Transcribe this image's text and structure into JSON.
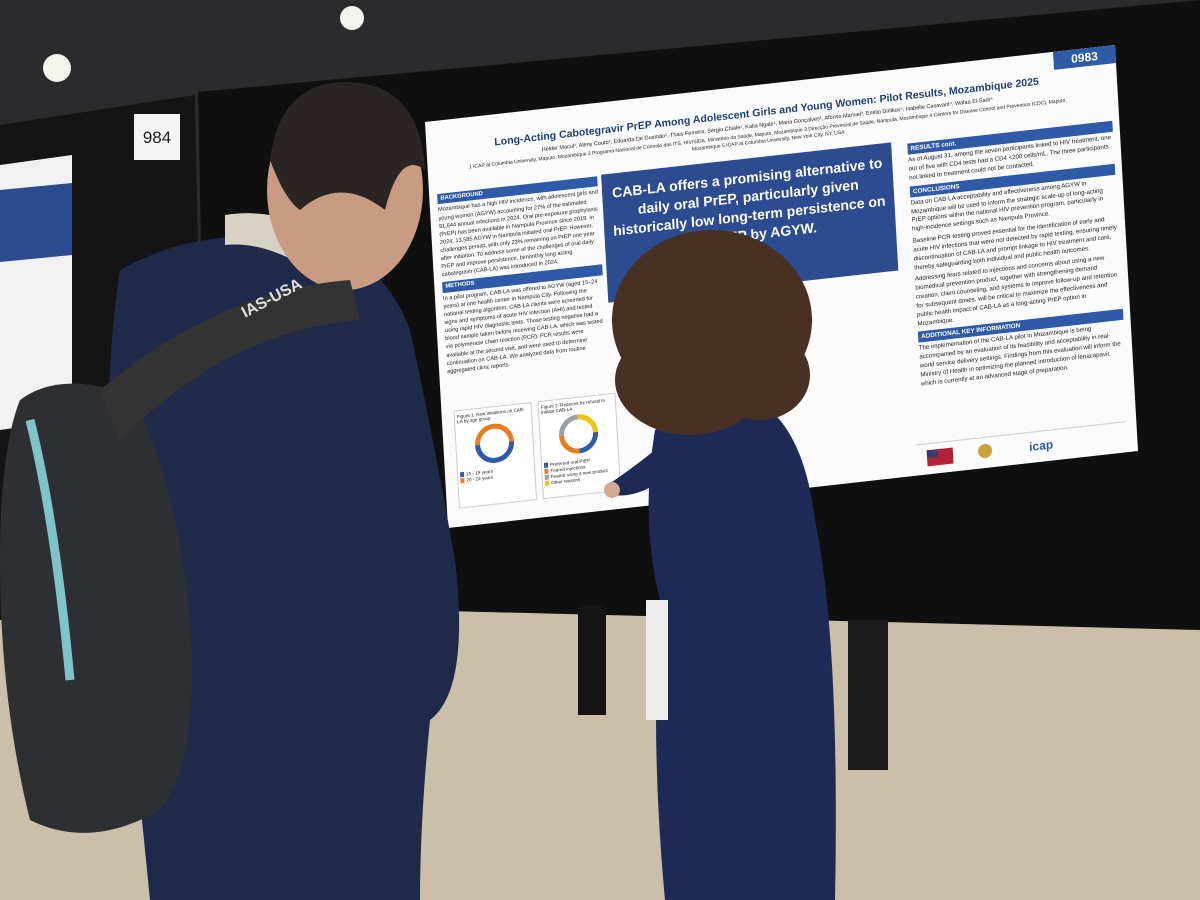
{
  "left_booth_number": "984",
  "bag_logo": "IAS-USA",
  "poster": {
    "number": "0983",
    "title": "Long-Acting Cabotegravir PrEP Among Adolescent Girls and Young Women: Pilot Results, Mozambique 2025",
    "authors": "Hélder Macul¹, Aleny Couto², Eduarda De Gusmão¹, Thais Ferreira, Sérgio Chiale¹, Katia Ngale¹, Maria Gonçalves¹, Afonso Manuel³, Emilio Dirlikov⁴, Isabelle Casavant⁴, Wafaa El-Sadr⁵",
    "affiliations": "1 ICAP at Columbia University, Maputo, Mozambique 2 Programa Nacional de Controlo das ITS, HIV/SIDA, Ministério da Saúde, Maputo, Mozambique 3 Direcção Provincial de Saúde, Nampula, Mozambique 4 Centers for Disease Control and Prevention (CDC), Maputo, Mozambique 5 ICAP at Columbia University, New York City, NY, USA",
    "highlight": "CAB-LA offers a promising alternative to daily oral PrEP, particularly given historically low long-term persistence on oral PrEP by AGYW.",
    "left_sections": [
      {
        "heading": "BACKGROUND",
        "text": "Mozambique has a high HIV incidence, with adolescent girls and young women (AGYW) accounting for 27% of the estimated 91,644 annual infections in 2024. Oral pre-exposure prophylaxis (PrEP) has been available in Nampula Province since 2019. In 2024, 13,585 AGYW in Nampula initiated oral PrEP. However, challenges persist, with only 23% remaining on PrEP one year after initiation. To address some of the challenges of oral daily PrEP and improve persistence, bimonthly long acting cabotegravir (CAB-LA) was introduced in 2024."
      },
      {
        "heading": "METHODS",
        "text": "In a pilot program, CAB-LA was offered to AGYW (aged 15–24 years) at one health center in Nampula City. Following the national testing algorithm, CAB-LA clients were screened for signs and symptoms of acute HIV infection (AHI) and tested using rapid HIV diagnostic tests. Those testing negative had a blood sample taken before receiving CAB-LA, which was tested via polymerase chain reaction (PCR). PCR results were available at the second visit, and were used to determine continuation on CAB-LA. We analyzed data from routine aggregated clinic reports."
      }
    ],
    "right_sections": [
      {
        "heading": "RESULTS cont.",
        "paragraphs": [
          "As of August 31, among the seven participants linked to HIV treatment, one out of five with CD4 tests had a CD4 <200 cells/mL. The three participants not linked to treatment could not be contacted."
        ]
      },
      {
        "heading": "CONCLUSIONS",
        "paragraphs": [
          "Data on CAB-LA acceptability and effectiveness among AGYW in Mozambique will be used to inform the strategic scale-up of long-acting PrEP options within the national HIV prevention program, particularly in high-incidence settings such as Nampula Province.",
          "Baseline PCR testing proved essential for the identification of early and acute HIV infections that were not detected by rapid testing, ensuring timely discontinuation of CAB-LA and prompt linkage to HIV treatment and care, thereby safeguarding both individual and public health outcomes.",
          "Addressing fears related to injections and concerns about using a new biomedical prevention product, together with strengthening demand creation, client counseling, and systems to improve follow-up and retention for subsequent doses, will be critical to maximize the effectiveness and public health impact of CAB-LA as a long-acting PrEP option in Mozambique."
        ]
      },
      {
        "heading": "ADDITIONAL KEY INFORMATION",
        "paragraphs": [
          "The implementation of the CAB-LA pilot in Mozambique is being accompanied by an evaluation of its feasibility and acceptability in real-world service delivery settings. Findings from this evaluation will inform the Ministry of Health in optimizing the planned introduction of lenacapavir, which is currently at an advanced stage of preparation."
        ]
      }
    ],
    "figures": [
      {
        "caption": "Figure 1. New initiations on CAB-LA by age group",
        "legend": [
          "15 - 19 years",
          "20 - 24 years"
        ]
      },
      {
        "caption": "Figure 2. Reasons for refusal to initiate CAB-LA",
        "legend": [
          "Preferred oral PrEP",
          "Feared injections",
          "Feared using a new product",
          "Other reasons"
        ]
      }
    ],
    "logo_text": "icap"
  }
}
